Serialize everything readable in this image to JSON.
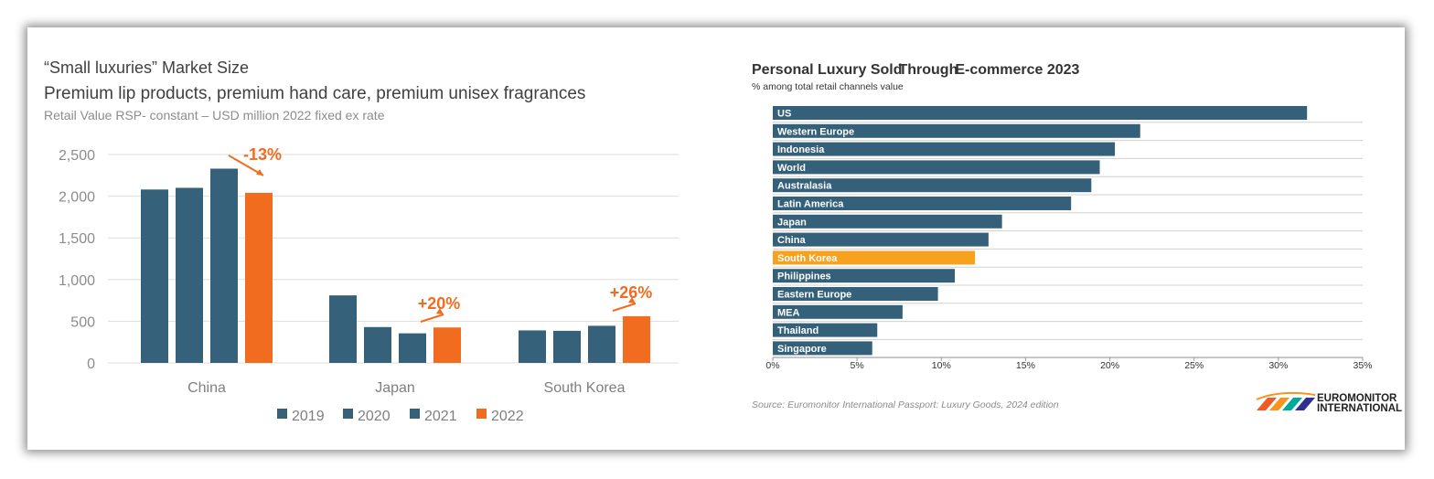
{
  "chart_data": [
    {
      "type": "bar",
      "title": "“Small luxuries” Market Size",
      "subtitle": "Premium lip products, premium hand care, premium unisex fragrances",
      "note": "Retail Value RSP- constant – USD million 2022 fixed ex rate",
      "categories": [
        "China",
        "Japan",
        "South Korea"
      ],
      "series": [
        {
          "name": "2019",
          "values": [
            2080,
            810,
            390
          ]
        },
        {
          "name": "2020",
          "values": [
            2100,
            430,
            385
          ]
        },
        {
          "name": "2021",
          "values": [
            2330,
            355,
            445
          ]
        },
        {
          "name": "2022",
          "values": [
            2040,
            425,
            560
          ]
        }
      ],
      "ylim": [
        0,
        2500
      ],
      "yticks": [
        "0",
        "500",
        "1,000",
        "1,500",
        "2,000",
        "2,500"
      ],
      "yticks_values": [
        0,
        500,
        1000,
        1500,
        2000,
        2500
      ],
      "grid": true,
      "legend": "bottom",
      "annotations": [
        "-13%",
        "+20%",
        "+26%"
      ],
      "colors": {
        "base": "#35627a",
        "highlight": "#f26c1f",
        "annotation": "#f26c1f"
      }
    },
    {
      "type": "bar",
      "orientation": "horizontal",
      "title_parts": [
        "Personal Luxury Sold",
        "Through",
        "E-commerce 2023"
      ],
      "subtitle": "% among total retail channels value",
      "categories": [
        "US",
        "Western Europe",
        "Indonesia",
        "World",
        "Australasia",
        "Latin America",
        "Japan",
        "China",
        "South Korea",
        "Philippines",
        "Eastern Europe",
        "MEA",
        "Thailand",
        "Singapore"
      ],
      "values": [
        31.7,
        21.8,
        20.3,
        19.4,
        18.9,
        17.7,
        13.6,
        12.8,
        12.0,
        10.8,
        9.8,
        7.7,
        6.2,
        5.9
      ],
      "highlight": "South Korea",
      "xlim": [
        0,
        35
      ],
      "xticks": [
        "0%",
        "5%",
        "10%",
        "15%",
        "20%",
        "25%",
        "30%",
        "35%"
      ],
      "xticks_values": [
        0,
        5,
        10,
        15,
        20,
        25,
        30,
        35
      ],
      "source": "Source: Euromonitor International Passport: Luxury Goods, 2024 edition",
      "colors": {
        "base": "#34607a",
        "highlight": "#f8a11f"
      }
    }
  ],
  "logo": {
    "line1": "EUROMONITOR",
    "line2": "INTERNATIONAL",
    "colors": [
      "#f15a24",
      "#f7931e",
      "#00a99d",
      "#2e3192"
    ]
  }
}
